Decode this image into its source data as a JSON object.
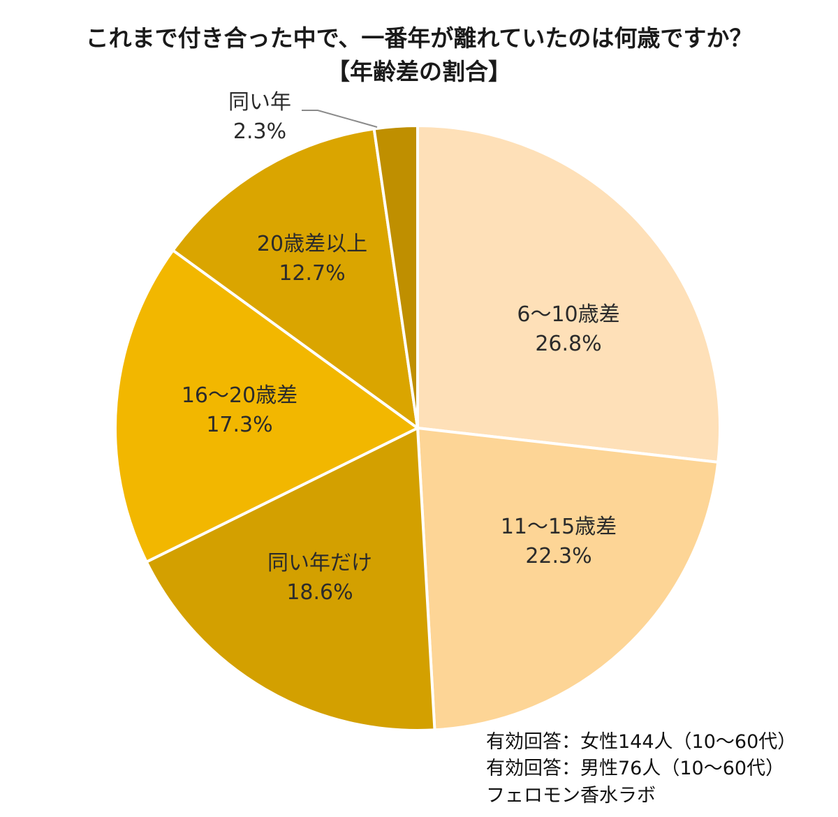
{
  "title": {
    "line1": "これまで付き合った中で、一番年が離れていたのは何歳ですか？",
    "line2": "【年齢差の割合】"
  },
  "chart_data": {
    "type": "pie",
    "title": "これまで付き合った中で、一番年が離れていたのは何歳ですか？【年齢差の割合】",
    "start_angle": "12 o'clock",
    "direction": "clockwise",
    "categories": [
      "6〜10歳差",
      "11〜15歳差",
      "同い年だけ",
      "16〜20歳差",
      "20歳差以上",
      "同い年"
    ],
    "values": [
      26.8,
      22.3,
      18.6,
      17.3,
      12.7,
      2.3
    ],
    "unit": "%",
    "colors": [
      "#FEE0B8",
      "#FDD596",
      "#D3A000",
      "#F2B700",
      "#DAA500",
      "#BF8F00"
    ],
    "labels": [
      {
        "name": "6〜10歳差",
        "pct": "26.8%"
      },
      {
        "name": "11〜15歳差",
        "pct": "22.3%"
      },
      {
        "name": "同い年だけ",
        "pct": "18.6%"
      },
      {
        "name": "16〜20歳差",
        "pct": "17.3%"
      },
      {
        "name": "20歳差以上",
        "pct": "12.7%"
      },
      {
        "name": "同い年",
        "pct": "2.3%"
      }
    ],
    "legend": "none (labels inside slices; 同い年 label outside with leader line)"
  },
  "notes": {
    "line1": "有効回答：女性144人（10〜60代）",
    "line2": "有効回答：男性76人（10〜60代）",
    "line3": "フェロモン香水ラボ"
  }
}
